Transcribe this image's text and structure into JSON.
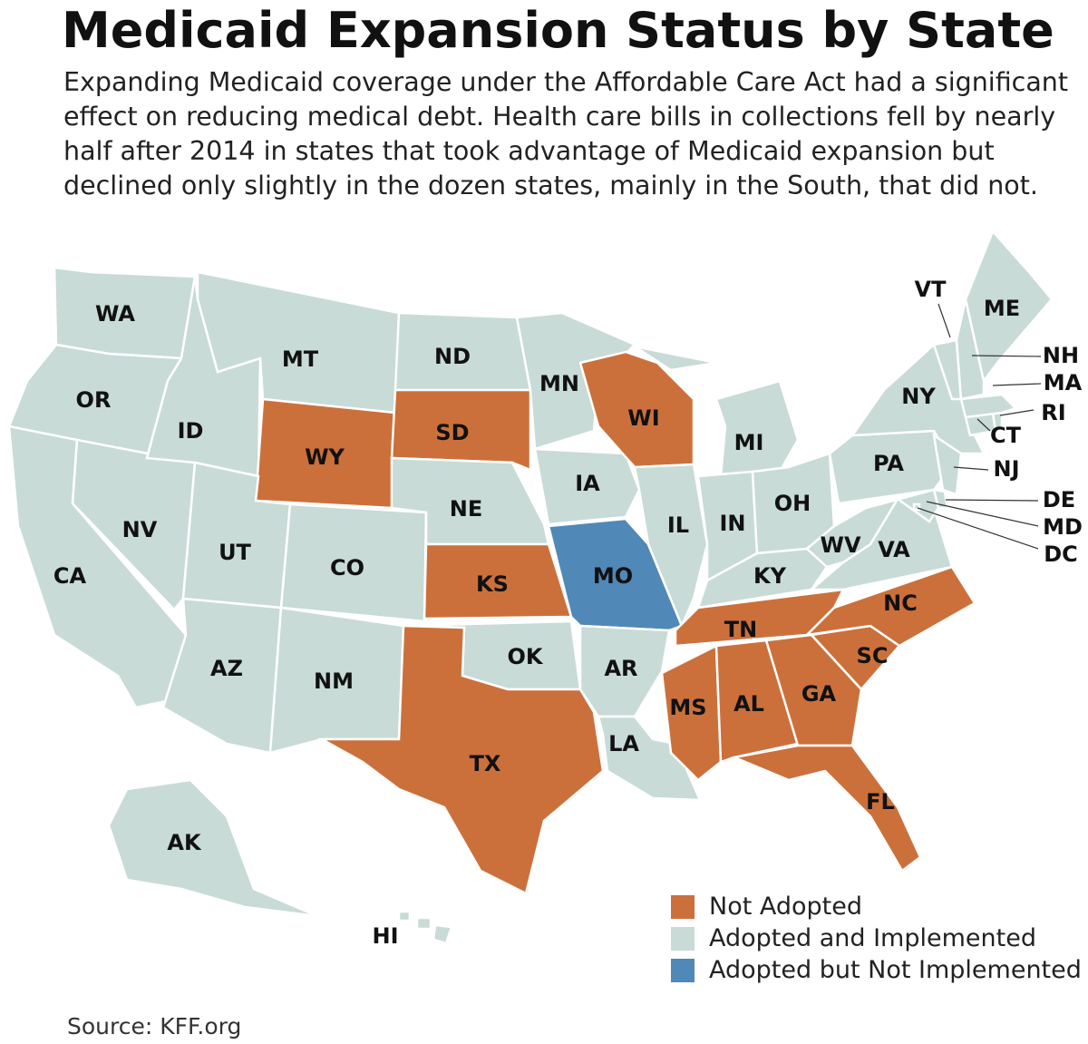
{
  "title": "Medicaid Expansion Status by State",
  "subtitle": "Expanding Medicaid coverage under the Affordable Care Act had a significant effect on reducing medical debt. Health care bills in collections fell by nearly half after 2014 in states that took advantage of Medicaid expansion but declined only slightly in the dozen states, mainly in the South, that did not.",
  "colors": {
    "not_adopted": "#cc703b",
    "adopted": "#c8dbd6",
    "not_implemented": "#5088b8",
    "border": "#ffffff"
  },
  "legend": [
    {
      "key": "not_adopted",
      "label": "Not Adopted"
    },
    {
      "key": "adopted",
      "label": "Adopted and Implemented"
    },
    {
      "key": "not_implemented",
      "label": "Adopted but Not Implemented"
    }
  ],
  "states": [
    {
      "code": "WA",
      "status": "adopted"
    },
    {
      "code": "OR",
      "status": "adopted"
    },
    {
      "code": "CA",
      "status": "adopted"
    },
    {
      "code": "NV",
      "status": "adopted"
    },
    {
      "code": "ID",
      "status": "adopted"
    },
    {
      "code": "MT",
      "status": "adopted"
    },
    {
      "code": "WY",
      "status": "not_adopted"
    },
    {
      "code": "UT",
      "status": "adopted"
    },
    {
      "code": "CO",
      "status": "adopted"
    },
    {
      "code": "AZ",
      "status": "adopted"
    },
    {
      "code": "NM",
      "status": "adopted"
    },
    {
      "code": "ND",
      "status": "adopted"
    },
    {
      "code": "SD",
      "status": "not_adopted"
    },
    {
      "code": "NE",
      "status": "adopted"
    },
    {
      "code": "KS",
      "status": "not_adopted"
    },
    {
      "code": "OK",
      "status": "adopted"
    },
    {
      "code": "TX",
      "status": "not_adopted"
    },
    {
      "code": "MN",
      "status": "adopted"
    },
    {
      "code": "IA",
      "status": "adopted"
    },
    {
      "code": "MO",
      "status": "not_implemented"
    },
    {
      "code": "AR",
      "status": "adopted"
    },
    {
      "code": "LA",
      "status": "adopted"
    },
    {
      "code": "WI",
      "status": "not_adopted"
    },
    {
      "code": "IL",
      "status": "adopted"
    },
    {
      "code": "MI",
      "status": "adopted"
    },
    {
      "code": "IN",
      "status": "adopted"
    },
    {
      "code": "OH",
      "status": "adopted"
    },
    {
      "code": "KY",
      "status": "adopted"
    },
    {
      "code": "TN",
      "status": "not_adopted"
    },
    {
      "code": "MS",
      "status": "not_adopted"
    },
    {
      "code": "AL",
      "status": "not_adopted"
    },
    {
      "code": "GA",
      "status": "not_adopted"
    },
    {
      "code": "SC",
      "status": "not_adopted"
    },
    {
      "code": "NC",
      "status": "not_adopted"
    },
    {
      "code": "FL",
      "status": "not_adopted"
    },
    {
      "code": "VA",
      "status": "adopted"
    },
    {
      "code": "WV",
      "status": "adopted"
    },
    {
      "code": "PA",
      "status": "adopted"
    },
    {
      "code": "NY",
      "status": "adopted"
    },
    {
      "code": "NJ",
      "status": "adopted"
    },
    {
      "code": "DE",
      "status": "adopted"
    },
    {
      "code": "MD",
      "status": "adopted"
    },
    {
      "code": "DC",
      "status": "adopted"
    },
    {
      "code": "CT",
      "status": "adopted"
    },
    {
      "code": "RI",
      "status": "adopted"
    },
    {
      "code": "MA",
      "status": "adopted"
    },
    {
      "code": "VT",
      "status": "adopted"
    },
    {
      "code": "NH",
      "status": "adopted"
    },
    {
      "code": "ME",
      "status": "adopted"
    },
    {
      "code": "AK",
      "status": "adopted"
    },
    {
      "code": "HI",
      "status": "adopted"
    }
  ],
  "source": "Source: KFF.org"
}
